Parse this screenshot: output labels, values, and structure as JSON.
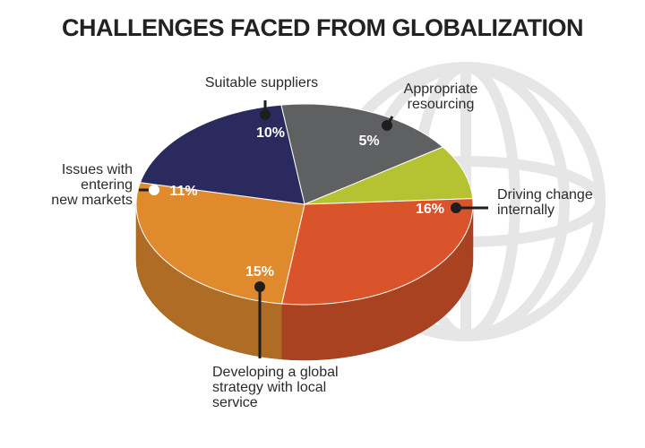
{
  "chart_data": {
    "type": "pie",
    "title": "CHALLENGES FACED FROM GLOBALIZATION",
    "slices": [
      {
        "label": "Suitable suppliers",
        "value": 10,
        "value_label": "10%",
        "color": "#5f6062"
      },
      {
        "label": "Appropriate resourcing",
        "value": 5,
        "value_label": "5%",
        "color": "#b5c232"
      },
      {
        "label": "Driving change internally",
        "value": 16,
        "value_label": "16%",
        "color": "#d9542a"
      },
      {
        "label": "Developing a global strategy with local service",
        "value": 15,
        "value_label": "15%",
        "color": "#e08a2e"
      },
      {
        "label": "Issues with entering new markets",
        "value": 11,
        "value_label": "11%",
        "color": "#2a2a5e"
      }
    ],
    "legend": "callouts"
  }
}
